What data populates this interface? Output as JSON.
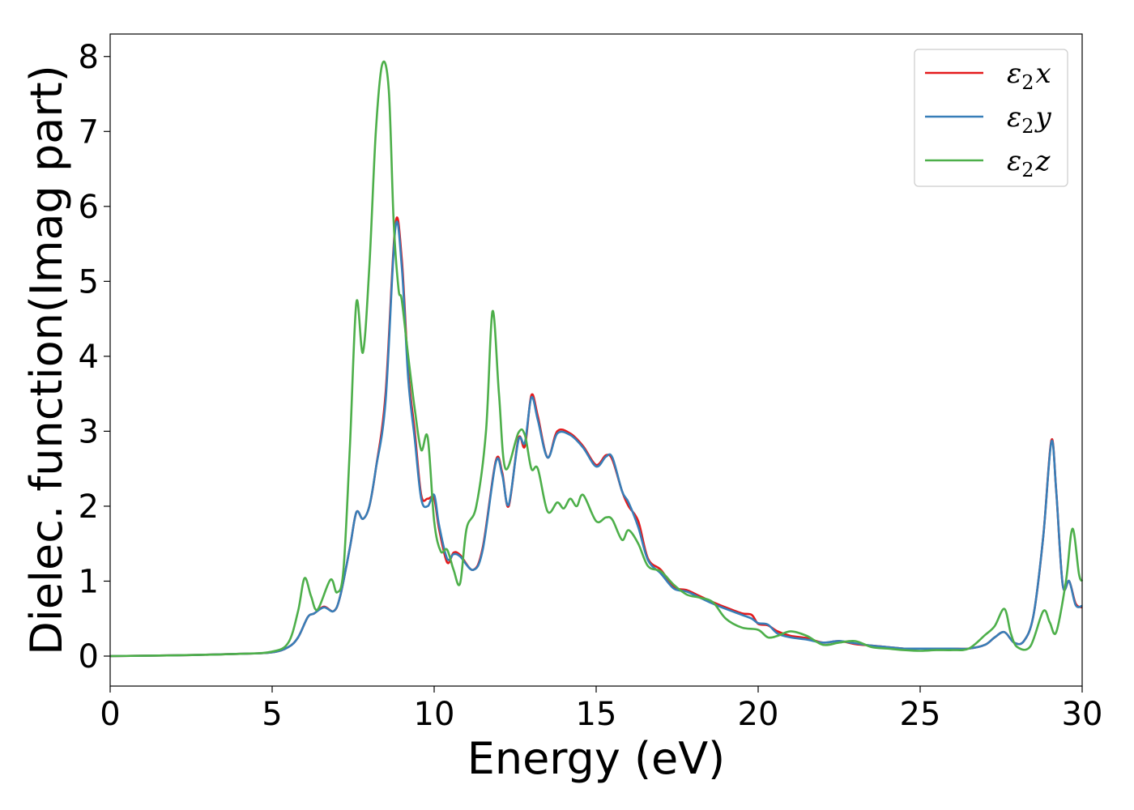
{
  "chart_data": {
    "type": "line",
    "xlabel": "Energy (eV)",
    "ylabel": "Dielec. function(Imag part)",
    "xlim": [
      0,
      30
    ],
    "ylim": [
      -0.4,
      8.3
    ],
    "xticks": [
      0,
      5,
      10,
      15,
      20,
      25,
      30
    ],
    "yticks": [
      0,
      1,
      2,
      3,
      4,
      5,
      6,
      7,
      8
    ],
    "legend_position": "top-right",
    "grid": false,
    "series": [
      {
        "name": "ε₂x",
        "label_base": "ε",
        "label_sub": "2",
        "label_var": "x",
        "color": "#e41a1c",
        "points": [
          [
            0,
            0
          ],
          [
            2,
            0.01
          ],
          [
            4,
            0.03
          ],
          [
            5,
            0.05
          ],
          [
            5.5,
            0.12
          ],
          [
            5.8,
            0.25
          ],
          [
            6.1,
            0.52
          ],
          [
            6.3,
            0.57
          ],
          [
            6.6,
            0.66
          ],
          [
            6.9,
            0.6
          ],
          [
            7.1,
            0.8
          ],
          [
            7.4,
            1.45
          ],
          [
            7.6,
            1.92
          ],
          [
            7.8,
            1.83
          ],
          [
            8.0,
            2.0
          ],
          [
            8.2,
            2.5
          ],
          [
            8.5,
            3.5
          ],
          [
            8.8,
            5.75
          ],
          [
            9.0,
            5.3
          ],
          [
            9.2,
            3.8
          ],
          [
            9.4,
            3.0
          ],
          [
            9.6,
            2.15
          ],
          [
            9.8,
            2.1
          ],
          [
            10.0,
            2.1
          ],
          [
            10.15,
            1.7
          ],
          [
            10.4,
            1.25
          ],
          [
            10.6,
            1.38
          ],
          [
            10.8,
            1.35
          ],
          [
            11.2,
            1.15
          ],
          [
            11.5,
            1.45
          ],
          [
            11.9,
            2.6
          ],
          [
            12.1,
            2.45
          ],
          [
            12.3,
            2.0
          ],
          [
            12.6,
            2.9
          ],
          [
            12.8,
            2.8
          ],
          [
            13.0,
            3.48
          ],
          [
            13.2,
            3.2
          ],
          [
            13.5,
            2.65
          ],
          [
            13.8,
            3.0
          ],
          [
            14.2,
            2.97
          ],
          [
            14.6,
            2.8
          ],
          [
            15.0,
            2.55
          ],
          [
            15.3,
            2.68
          ],
          [
            15.5,
            2.62
          ],
          [
            15.8,
            2.2
          ],
          [
            16.0,
            2.0
          ],
          [
            16.3,
            1.8
          ],
          [
            16.6,
            1.3
          ],
          [
            17.0,
            1.15
          ],
          [
            17.4,
            0.92
          ],
          [
            17.8,
            0.88
          ],
          [
            18.2,
            0.8
          ],
          [
            18.6,
            0.72
          ],
          [
            19.0,
            0.65
          ],
          [
            19.5,
            0.57
          ],
          [
            19.8,
            0.55
          ],
          [
            20.0,
            0.43
          ],
          [
            20.3,
            0.41
          ],
          [
            20.6,
            0.33
          ],
          [
            21.0,
            0.27
          ],
          [
            21.5,
            0.24
          ],
          [
            22.0,
            0.18
          ],
          [
            22.5,
            0.2
          ],
          [
            23.0,
            0.16
          ],
          [
            23.5,
            0.14
          ],
          [
            24.0,
            0.12
          ],
          [
            24.5,
            0.1
          ],
          [
            25.0,
            0.1
          ],
          [
            25.5,
            0.1
          ],
          [
            26.0,
            0.1
          ],
          [
            26.5,
            0.1
          ],
          [
            27.0,
            0.15
          ],
          [
            27.3,
            0.25
          ],
          [
            27.6,
            0.32
          ],
          [
            27.9,
            0.18
          ],
          [
            28.2,
            0.2
          ],
          [
            28.5,
            0.55
          ],
          [
            28.8,
            1.6
          ],
          [
            29.05,
            2.88
          ],
          [
            29.2,
            2.2
          ],
          [
            29.4,
            0.95
          ],
          [
            29.6,
            1.0
          ],
          [
            29.8,
            0.7
          ],
          [
            30.0,
            0.65
          ]
        ]
      },
      {
        "name": "ε₂y",
        "label_base": "ε",
        "label_sub": "2",
        "label_var": "y",
        "color": "#377eb8",
        "points": [
          [
            0,
            0
          ],
          [
            2,
            0.01
          ],
          [
            4,
            0.03
          ],
          [
            5,
            0.05
          ],
          [
            5.5,
            0.12
          ],
          [
            5.8,
            0.25
          ],
          [
            6.1,
            0.52
          ],
          [
            6.3,
            0.57
          ],
          [
            6.6,
            0.65
          ],
          [
            6.9,
            0.6
          ],
          [
            7.1,
            0.8
          ],
          [
            7.4,
            1.45
          ],
          [
            7.6,
            1.92
          ],
          [
            7.8,
            1.83
          ],
          [
            8.0,
            2.0
          ],
          [
            8.2,
            2.5
          ],
          [
            8.5,
            3.4
          ],
          [
            8.8,
            5.7
          ],
          [
            9.0,
            5.2
          ],
          [
            9.2,
            3.7
          ],
          [
            9.4,
            2.9
          ],
          [
            9.6,
            2.1
          ],
          [
            9.8,
            2.0
          ],
          [
            10.0,
            2.15
          ],
          [
            10.15,
            1.75
          ],
          [
            10.4,
            1.3
          ],
          [
            10.6,
            1.36
          ],
          [
            10.8,
            1.33
          ],
          [
            11.2,
            1.15
          ],
          [
            11.5,
            1.42
          ],
          [
            11.9,
            2.58
          ],
          [
            12.1,
            2.42
          ],
          [
            12.3,
            2.02
          ],
          [
            12.6,
            2.88
          ],
          [
            12.8,
            2.85
          ],
          [
            13.0,
            3.45
          ],
          [
            13.2,
            3.15
          ],
          [
            13.5,
            2.65
          ],
          [
            13.8,
            2.97
          ],
          [
            14.2,
            2.95
          ],
          [
            14.6,
            2.78
          ],
          [
            15.0,
            2.53
          ],
          [
            15.3,
            2.66
          ],
          [
            15.5,
            2.65
          ],
          [
            15.8,
            2.2
          ],
          [
            16.0,
            2.05
          ],
          [
            16.3,
            1.72
          ],
          [
            16.6,
            1.28
          ],
          [
            17.0,
            1.1
          ],
          [
            17.4,
            0.9
          ],
          [
            17.8,
            0.86
          ],
          [
            18.2,
            0.78
          ],
          [
            18.6,
            0.7
          ],
          [
            19.0,
            0.63
          ],
          [
            19.5,
            0.55
          ],
          [
            19.8,
            0.5
          ],
          [
            20.0,
            0.44
          ],
          [
            20.3,
            0.42
          ],
          [
            20.6,
            0.3
          ],
          [
            21.0,
            0.25
          ],
          [
            21.5,
            0.22
          ],
          [
            22.0,
            0.18
          ],
          [
            22.5,
            0.2
          ],
          [
            23.0,
            0.17
          ],
          [
            23.5,
            0.14
          ],
          [
            24.0,
            0.12
          ],
          [
            24.5,
            0.1
          ],
          [
            25.0,
            0.1
          ],
          [
            25.5,
            0.1
          ],
          [
            26.0,
            0.1
          ],
          [
            26.5,
            0.1
          ],
          [
            27.0,
            0.15
          ],
          [
            27.3,
            0.25
          ],
          [
            27.6,
            0.32
          ],
          [
            27.9,
            0.18
          ],
          [
            28.2,
            0.2
          ],
          [
            28.5,
            0.55
          ],
          [
            28.8,
            1.6
          ],
          [
            29.05,
            2.86
          ],
          [
            29.2,
            2.2
          ],
          [
            29.4,
            0.95
          ],
          [
            29.6,
            1.0
          ],
          [
            29.8,
            0.68
          ],
          [
            30.0,
            0.67
          ]
        ]
      },
      {
        "name": "ε₂z",
        "label_base": "ε",
        "label_sub": "2",
        "label_var": "z",
        "color": "#4daf4a",
        "points": [
          [
            0,
            0
          ],
          [
            2,
            0.01
          ],
          [
            4,
            0.03
          ],
          [
            5,
            0.06
          ],
          [
            5.5,
            0.18
          ],
          [
            5.8,
            0.6
          ],
          [
            6.0,
            1.04
          ],
          [
            6.2,
            0.8
          ],
          [
            6.4,
            0.62
          ],
          [
            6.8,
            1.02
          ],
          [
            7.0,
            0.85
          ],
          [
            7.2,
            1.15
          ],
          [
            7.4,
            2.8
          ],
          [
            7.6,
            4.72
          ],
          [
            7.8,
            4.05
          ],
          [
            8.0,
            5.2
          ],
          [
            8.2,
            7.0
          ],
          [
            8.4,
            7.9
          ],
          [
            8.6,
            7.55
          ],
          [
            8.75,
            5.8
          ],
          [
            8.9,
            4.9
          ],
          [
            9.0,
            4.75
          ],
          [
            9.2,
            4.0
          ],
          [
            9.4,
            3.3
          ],
          [
            9.6,
            2.75
          ],
          [
            9.8,
            2.92
          ],
          [
            10.0,
            1.8
          ],
          [
            10.2,
            1.4
          ],
          [
            10.4,
            1.42
          ],
          [
            10.6,
            1.15
          ],
          [
            10.8,
            0.97
          ],
          [
            11.0,
            1.7
          ],
          [
            11.3,
            2.0
          ],
          [
            11.6,
            3.0
          ],
          [
            11.8,
            4.6
          ],
          [
            12.0,
            3.5
          ],
          [
            12.2,
            2.5
          ],
          [
            12.6,
            2.98
          ],
          [
            12.8,
            2.95
          ],
          [
            13.0,
            2.5
          ],
          [
            13.2,
            2.5
          ],
          [
            13.5,
            1.93
          ],
          [
            13.8,
            2.05
          ],
          [
            14.0,
            1.97
          ],
          [
            14.2,
            2.1
          ],
          [
            14.4,
            2.0
          ],
          [
            14.6,
            2.15
          ],
          [
            15.0,
            1.8
          ],
          [
            15.3,
            1.85
          ],
          [
            15.5,
            1.82
          ],
          [
            15.8,
            1.55
          ],
          [
            16.0,
            1.68
          ],
          [
            16.3,
            1.5
          ],
          [
            16.6,
            1.2
          ],
          [
            17.0,
            1.13
          ],
          [
            17.4,
            0.95
          ],
          [
            17.8,
            0.82
          ],
          [
            18.2,
            0.78
          ],
          [
            18.6,
            0.72
          ],
          [
            19.0,
            0.5
          ],
          [
            19.5,
            0.38
          ],
          [
            20.0,
            0.35
          ],
          [
            20.3,
            0.25
          ],
          [
            20.6,
            0.27
          ],
          [
            21.0,
            0.33
          ],
          [
            21.5,
            0.27
          ],
          [
            22.0,
            0.15
          ],
          [
            22.5,
            0.18
          ],
          [
            23.0,
            0.2
          ],
          [
            23.5,
            0.12
          ],
          [
            24.0,
            0.1
          ],
          [
            24.5,
            0.08
          ],
          [
            25.0,
            0.07
          ],
          [
            25.5,
            0.08
          ],
          [
            26.0,
            0.08
          ],
          [
            26.5,
            0.1
          ],
          [
            27.0,
            0.28
          ],
          [
            27.3,
            0.4
          ],
          [
            27.6,
            0.63
          ],
          [
            27.8,
            0.3
          ],
          [
            28.0,
            0.12
          ],
          [
            28.4,
            0.13
          ],
          [
            28.8,
            0.6
          ],
          [
            29.0,
            0.45
          ],
          [
            29.2,
            0.32
          ],
          [
            29.5,
            1.0
          ],
          [
            29.7,
            1.7
          ],
          [
            29.9,
            1.1
          ],
          [
            30.0,
            1.0
          ]
        ]
      }
    ]
  }
}
